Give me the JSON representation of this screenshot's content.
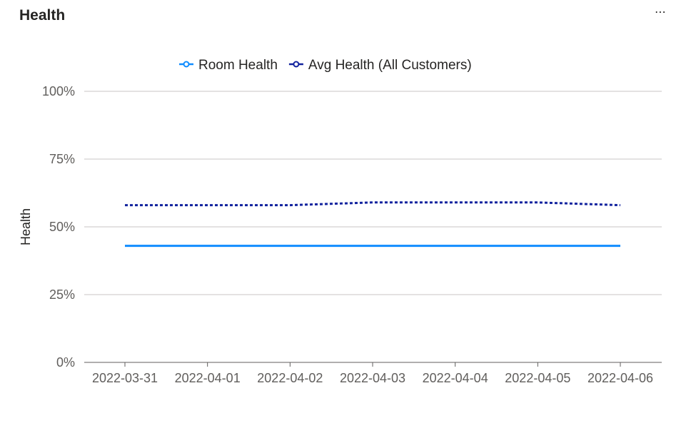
{
  "card": {
    "title": "Health",
    "more_label": "⋯"
  },
  "chart_data": {
    "type": "line",
    "title": "Health",
    "xlabel": "",
    "ylabel": "Health",
    "x": [
      "2022-03-31",
      "2022-04-01",
      "2022-04-02",
      "2022-04-03",
      "2022-04-04",
      "2022-04-05",
      "2022-04-06"
    ],
    "y_ticks": [
      "0%",
      "25%",
      "50%",
      "75%",
      "100%"
    ],
    "ylim": [
      0,
      100
    ],
    "grid": true,
    "legend_position": "top-center",
    "series": [
      {
        "name": "Room Health",
        "values": [
          43,
          43,
          43,
          43,
          43,
          43,
          43
        ],
        "color": "#118dff",
        "style": "solid"
      },
      {
        "name": "Avg Health (All Customers)",
        "values": [
          58,
          58,
          58,
          59,
          59,
          59,
          58
        ],
        "color": "#12239e",
        "style": "dotted"
      }
    ]
  }
}
